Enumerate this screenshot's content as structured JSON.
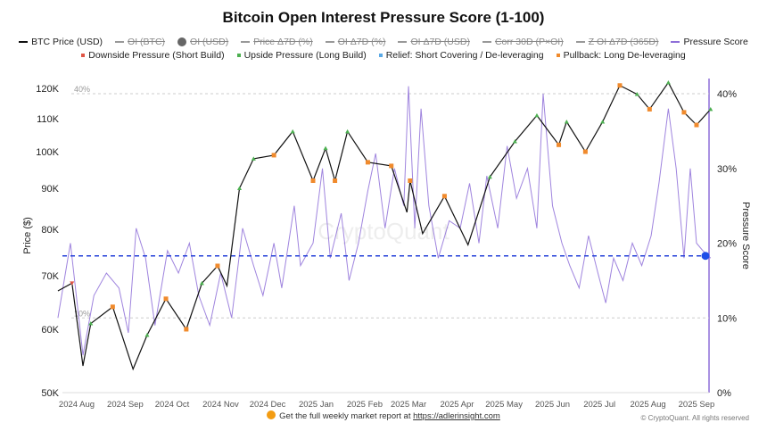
{
  "chart_data": {
    "type": "line",
    "title": "Bitcoin Open Interest Pressure Score (1-100)",
    "ylabel_left": "Price ($)",
    "ylabel_right": "Pressure Score",
    "left_axis": {
      "scale": "log",
      "range": [
        50000,
        120000
      ],
      "ticks": [
        "50K",
        "60K",
        "70K",
        "80K",
        "90K",
        "100K",
        "110K",
        "120K"
      ],
      "tick_values": [
        50000,
        60000,
        70000,
        80000,
        90000,
        100000,
        110000,
        120000
      ]
    },
    "right_axis": {
      "range": [
        0,
        40
      ],
      "ticks": [
        "0%",
        "10%",
        "20%",
        "30%",
        "40%"
      ],
      "tick_values": [
        0,
        10,
        20,
        30,
        40
      ]
    },
    "x_ticks": [
      "2024 Aug",
      "2024 Sep",
      "2024 Oct",
      "2024 Nov",
      "2024 Dec",
      "2025 Jan",
      "2025 Feb",
      "2025 Mar",
      "2025 Apr",
      "2025 May",
      "2025 Jun",
      "2025 Jul",
      "2025 Aug",
      "2025 Sep"
    ],
    "x_tick_dates": [
      "2024-08-01",
      "2024-09-01",
      "2024-10-01",
      "2024-11-01",
      "2024-12-01",
      "2025-01-01",
      "2025-02-01",
      "2025-03-01",
      "2025-04-01",
      "2025-05-01",
      "2025-06-01",
      "2025-07-01",
      "2025-08-01",
      "2025-09-01"
    ],
    "band_labels": [
      "40%",
      "10%"
    ],
    "band_values": [
      40,
      10
    ],
    "threshold": 18.3,
    "grid": false,
    "legend_position": "top",
    "legend": [
      {
        "label": "BTC Price (USD)",
        "color": "#111111",
        "active": true,
        "kind": "line"
      },
      {
        "label": "OI (BTC)",
        "color": "#999999",
        "active": false,
        "kind": "line"
      },
      {
        "label": "OI (USD)",
        "color": "#666666",
        "active": false,
        "kind": "dot"
      },
      {
        "label": "Price Δ7D (%)",
        "color": "#999999",
        "active": false,
        "kind": "line"
      },
      {
        "label": "OI Δ7D (%)",
        "color": "#999999",
        "active": false,
        "kind": "line"
      },
      {
        "label": "OI Δ7D (USD)",
        "color": "#999999",
        "active": false,
        "kind": "line"
      },
      {
        "label": "Corr 30D (P×OI)",
        "color": "#999999",
        "active": false,
        "kind": "line"
      },
      {
        "label": "Z OI Δ7D (365D)",
        "color": "#999999",
        "active": false,
        "kind": "line"
      },
      {
        "label": "Pressure Score",
        "color": "#8e6fd8",
        "active": true,
        "kind": "line"
      }
    ],
    "marker_legend": [
      {
        "label": "Downside Pressure (Short Build)",
        "color": "#e05545",
        "type": "down"
      },
      {
        "label": "Upside Pressure (Long Build)",
        "color": "#4caf50",
        "type": "up"
      },
      {
        "label": "Relief: Short Covering / De-leveraging",
        "color": "#5aa9e6",
        "type": "relief"
      },
      {
        "label": "Pullback: Long De-leveraging",
        "color": "#f08a2c",
        "type": "pullback"
      }
    ],
    "series": [
      {
        "name": "BTC Price (USD)",
        "axis": "left",
        "color": "#111111",
        "points": [
          [
            "2024-07-20",
            67000
          ],
          [
            "2024-07-29",
            68500
          ],
          [
            "2024-08-05",
            54000
          ],
          [
            "2024-08-10",
            61000
          ],
          [
            "2024-08-24",
            64000
          ],
          [
            "2024-09-06",
            53500
          ],
          [
            "2024-09-15",
            59000
          ],
          [
            "2024-09-27",
            65500
          ],
          [
            "2024-10-10",
            60000
          ],
          [
            "2024-10-20",
            68500
          ],
          [
            "2024-10-30",
            72000
          ],
          [
            "2024-11-05",
            68000
          ],
          [
            "2024-11-13",
            90000
          ],
          [
            "2024-11-22",
            98000
          ],
          [
            "2024-12-05",
            99000
          ],
          [
            "2024-12-17",
            106000
          ],
          [
            "2024-12-30",
            92000
          ],
          [
            "2025-01-07",
            101000
          ],
          [
            "2025-01-13",
            92000
          ],
          [
            "2025-01-21",
            106000
          ],
          [
            "2025-02-03",
            97000
          ],
          [
            "2025-02-18",
            96000
          ],
          [
            "2025-02-28",
            84000
          ],
          [
            "2025-03-02",
            92000
          ],
          [
            "2025-03-10",
            79000
          ],
          [
            "2025-03-24",
            88000
          ],
          [
            "2025-04-08",
            76500
          ],
          [
            "2025-04-22",
            93000
          ],
          [
            "2025-05-08",
            103000
          ],
          [
            "2025-05-22",
            111000
          ],
          [
            "2025-06-05",
            102000
          ],
          [
            "2025-06-10",
            109000
          ],
          [
            "2025-06-22",
            100000
          ],
          [
            "2025-07-03",
            109000
          ],
          [
            "2025-07-14",
            121000
          ],
          [
            "2025-07-25",
            118000
          ],
          [
            "2025-08-02",
            113000
          ],
          [
            "2025-08-14",
            122000
          ],
          [
            "2025-08-24",
            112000
          ],
          [
            "2025-09-01",
            108000
          ],
          [
            "2025-09-10",
            113000
          ]
        ]
      },
      {
        "name": "Pressure Score",
        "axis": "right",
        "color": "#8e6fd8",
        "points": [
          [
            "2024-07-20",
            10
          ],
          [
            "2024-07-28",
            20
          ],
          [
            "2024-08-05",
            5
          ],
          [
            "2024-08-12",
            13
          ],
          [
            "2024-08-20",
            16
          ],
          [
            "2024-08-28",
            14
          ],
          [
            "2024-09-03",
            8
          ],
          [
            "2024-09-08",
            22
          ],
          [
            "2024-09-14",
            18
          ],
          [
            "2024-09-20",
            9
          ],
          [
            "2024-09-28",
            19
          ],
          [
            "2024-10-05",
            16
          ],
          [
            "2024-10-12",
            20
          ],
          [
            "2024-10-18",
            13
          ],
          [
            "2024-10-25",
            9
          ],
          [
            "2024-11-01",
            16
          ],
          [
            "2024-11-08",
            10
          ],
          [
            "2024-11-15",
            22
          ],
          [
            "2024-11-22",
            17
          ],
          [
            "2024-11-28",
            13
          ],
          [
            "2024-12-05",
            20
          ],
          [
            "2024-12-10",
            14
          ],
          [
            "2024-12-18",
            25
          ],
          [
            "2024-12-22",
            17
          ],
          [
            "2024-12-30",
            20
          ],
          [
            "2025-01-05",
            30
          ],
          [
            "2025-01-10",
            18
          ],
          [
            "2025-01-17",
            24
          ],
          [
            "2025-01-22",
            15
          ],
          [
            "2025-01-28",
            20
          ],
          [
            "2025-02-03",
            27
          ],
          [
            "2025-02-08",
            32
          ],
          [
            "2025-02-14",
            22
          ],
          [
            "2025-02-20",
            30
          ],
          [
            "2025-02-26",
            25
          ],
          [
            "2025-03-01",
            41
          ],
          [
            "2025-03-05",
            22
          ],
          [
            "2025-03-09",
            38
          ],
          [
            "2025-03-14",
            25
          ],
          [
            "2025-03-20",
            18
          ],
          [
            "2025-03-27",
            23
          ],
          [
            "2025-04-03",
            22
          ],
          [
            "2025-04-09",
            28
          ],
          [
            "2025-04-15",
            20
          ],
          [
            "2025-04-20",
            29
          ],
          [
            "2025-04-27",
            22
          ],
          [
            "2025-05-03",
            33
          ],
          [
            "2025-05-09",
            26
          ],
          [
            "2025-05-16",
            30
          ],
          [
            "2025-05-22",
            22
          ],
          [
            "2025-05-26",
            40
          ],
          [
            "2025-06-01",
            25
          ],
          [
            "2025-06-07",
            20
          ],
          [
            "2025-06-12",
            17
          ],
          [
            "2025-06-18",
            14
          ],
          [
            "2025-06-24",
            21
          ],
          [
            "2025-06-30",
            16
          ],
          [
            "2025-07-05",
            12
          ],
          [
            "2025-07-10",
            18
          ],
          [
            "2025-07-16",
            15
          ],
          [
            "2025-07-22",
            20
          ],
          [
            "2025-07-28",
            17
          ],
          [
            "2025-08-03",
            21
          ],
          [
            "2025-08-08",
            28
          ],
          [
            "2025-08-14",
            38
          ],
          [
            "2025-08-19",
            30
          ],
          [
            "2025-08-24",
            18
          ],
          [
            "2025-08-28",
            30
          ],
          [
            "2025-09-01",
            20
          ],
          [
            "2025-09-05",
            19
          ],
          [
            "2025-09-10",
            18
          ]
        ]
      }
    ],
    "markers": [
      [
        "2024-07-29",
        "down"
      ],
      [
        "2024-08-10",
        "up"
      ],
      [
        "2024-08-24",
        "pullback"
      ],
      [
        "2024-09-15",
        "up"
      ],
      [
        "2024-09-27",
        "pullback"
      ],
      [
        "2024-10-10",
        "pullback"
      ],
      [
        "2024-10-20",
        "up"
      ],
      [
        "2024-10-30",
        "pullback"
      ],
      [
        "2024-11-13",
        "up"
      ],
      [
        "2024-11-22",
        "up"
      ],
      [
        "2024-12-05",
        "pullback"
      ],
      [
        "2024-12-17",
        "up"
      ],
      [
        "2024-12-30",
        "pullback"
      ],
      [
        "2025-01-07",
        "up"
      ],
      [
        "2025-01-13",
        "pullback"
      ],
      [
        "2025-01-21",
        "up"
      ],
      [
        "2025-02-03",
        "pullback"
      ],
      [
        "2025-02-18",
        "pullback"
      ],
      [
        "2025-03-02",
        "pullback"
      ],
      [
        "2025-03-24",
        "pullback"
      ],
      [
        "2025-04-22",
        "up"
      ],
      [
        "2025-05-08",
        "up"
      ],
      [
        "2025-05-22",
        "up"
      ],
      [
        "2025-06-05",
        "pullback"
      ],
      [
        "2025-06-10",
        "up"
      ],
      [
        "2025-06-22",
        "pullback"
      ],
      [
        "2025-07-03",
        "up"
      ],
      [
        "2025-07-14",
        "pullback"
      ],
      [
        "2025-07-25",
        "up"
      ],
      [
        "2025-08-02",
        "pullback"
      ],
      [
        "2025-08-14",
        "up"
      ],
      [
        "2025-08-24",
        "pullback"
      ],
      [
        "2025-09-01",
        "pullback"
      ],
      [
        "2025-09-10",
        "up"
      ]
    ]
  },
  "watermark": "CryptoQuant",
  "footer": {
    "text": "Get the full weekly market report at",
    "link": "https://adlerinsight.com",
    "copyright": "© CryptoQuant. All rights reserved"
  }
}
